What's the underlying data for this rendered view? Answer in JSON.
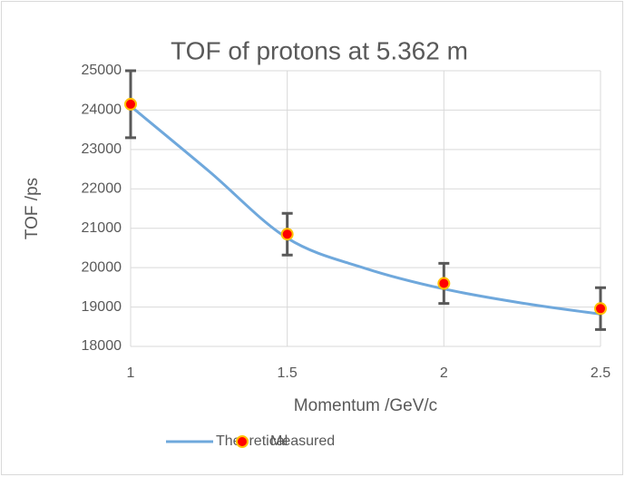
{
  "chart_data": {
    "type": "line",
    "title": "TOF of protons at 5.362 m",
    "x_label": "Momentum /GeV/c",
    "y_label": "TOF /ps",
    "xlim": [
      1,
      2.5
    ],
    "xticks": [
      1,
      1.5,
      2,
      2.5
    ],
    "ylim": [
      18000,
      25000
    ],
    "yticks": [
      18000,
      19000,
      20000,
      21000,
      22000,
      23000,
      24000,
      25000
    ],
    "grid": true,
    "legend": "bottom",
    "series": [
      {
        "name": "Theoretical",
        "type": "line",
        "color": "#6fa8dc",
        "x": [
          1,
          1.25,
          1.5,
          1.75,
          2,
          2.25,
          2.5
        ],
        "values": [
          24100,
          22450,
          20750,
          19980,
          19460,
          19100,
          18820
        ]
      },
      {
        "name": "Measured",
        "type": "scatter",
        "color": "#ff0000",
        "edge": "#ffc000",
        "x": [
          1,
          1.5,
          2,
          2.5
        ],
        "values": [
          24150,
          20850,
          19600,
          18960
        ],
        "errors": [
          850,
          530,
          510,
          530
        ],
        "error_color": "#595959"
      }
    ]
  }
}
